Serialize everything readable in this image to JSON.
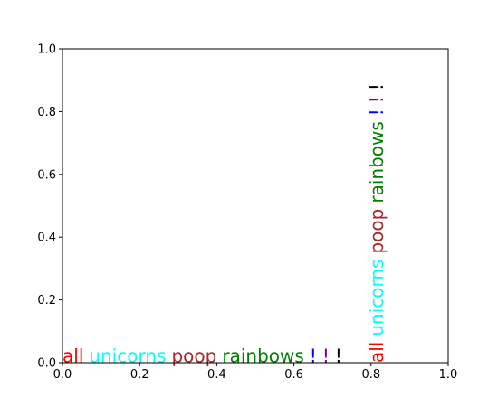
{
  "chart_data": {
    "type": "scatter",
    "title": "",
    "xlabel": "",
    "ylabel": "",
    "xlim": [
      0.0,
      1.0
    ],
    "ylim": [
      0.0,
      1.0
    ],
    "grid": false,
    "legend": "",
    "xticks": [
      0.0,
      0.2,
      0.4,
      0.6,
      0.8,
      1.0
    ],
    "yticks": [
      0.0,
      0.2,
      0.4,
      0.6,
      0.8,
      1.0
    ],
    "xtick_labels": [
      "0.0",
      "0.2",
      "0.4",
      "0.6",
      "0.8",
      "1.0"
    ],
    "ytick_labels": [
      "0.0",
      "0.2",
      "0.4",
      "0.6",
      "0.8",
      "1.0"
    ],
    "annotations": [
      {
        "group": "horizontal",
        "text": "all",
        "color": "#ff0000",
        "x": 0.0,
        "y": 0.0,
        "rotation": 0
      },
      {
        "group": "horizontal",
        "text": "unicorns",
        "color": "#00ffff",
        "x": 0.0,
        "y": 0.0,
        "rotation": 0
      },
      {
        "group": "horizontal",
        "text": "poop",
        "color": "#a52a2a",
        "x": 0.0,
        "y": 0.0,
        "rotation": 0
      },
      {
        "group": "horizontal",
        "text": "rainbows",
        "color": "#008000",
        "x": 0.0,
        "y": 0.0,
        "rotation": 0
      },
      {
        "group": "horizontal",
        "text": "!",
        "color": "#0000ff",
        "x": 0.0,
        "y": 0.0,
        "rotation": 0
      },
      {
        "group": "horizontal",
        "text": "!",
        "color": "#800080",
        "x": 0.0,
        "y": 0.0,
        "rotation": 0
      },
      {
        "group": "horizontal",
        "text": "!",
        "color": "#000000",
        "x": 0.0,
        "y": 0.0,
        "rotation": 0
      },
      {
        "group": "vertical",
        "text": "all",
        "color": "#ff0000",
        "x": 0.83,
        "y": 0.0,
        "rotation": 90
      },
      {
        "group": "vertical",
        "text": "unicorns",
        "color": "#00ffff",
        "x": 0.83,
        "y": 0.0,
        "rotation": 90
      },
      {
        "group": "vertical",
        "text": "poop",
        "color": "#a52a2a",
        "x": 0.83,
        "y": 0.0,
        "rotation": 90
      },
      {
        "group": "vertical",
        "text": "rainbows",
        "color": "#008000",
        "x": 0.83,
        "y": 0.0,
        "rotation": 90
      },
      {
        "group": "vertical",
        "text": "!",
        "color": "#0000ff",
        "x": 0.83,
        "y": 0.0,
        "rotation": 90
      },
      {
        "group": "vertical",
        "text": "!",
        "color": "#800080",
        "x": 0.83,
        "y": 0.0,
        "rotation": 90
      },
      {
        "group": "vertical",
        "text": "!",
        "color": "#000000",
        "x": 0.83,
        "y": 0.0,
        "rotation": 90
      }
    ]
  }
}
